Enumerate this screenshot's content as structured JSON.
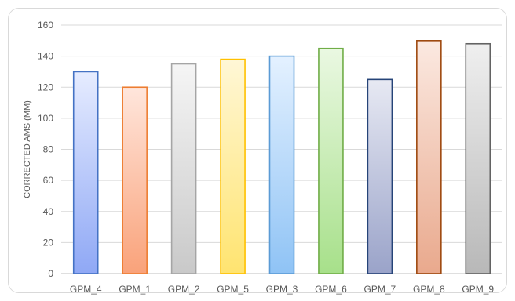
{
  "chart_data": {
    "type": "bar",
    "title": "",
    "xlabel": "",
    "ylabel": "CORRECTED AMS (MM)",
    "ylim": [
      0,
      160
    ],
    "yticks": [
      0,
      20,
      40,
      60,
      80,
      100,
      120,
      140,
      160
    ],
    "grid": true,
    "legend": "none",
    "categories": [
      "GPM_4",
      "GPM_1",
      "GPM_2",
      "GPM_5",
      "GPM_3",
      "GPM_6",
      "GPM_7",
      "GPM_8",
      "GPM_9"
    ],
    "values": [
      130,
      120,
      135,
      138,
      140,
      145,
      125,
      150,
      148
    ],
    "colors": [
      {
        "top": "#e6ecff",
        "bottom": "#8fa8f5",
        "stroke": "#4472c4"
      },
      {
        "top": "#ffe6dc",
        "bottom": "#f9a27a",
        "stroke": "#ed7d31"
      },
      {
        "top": "#f5f5f5",
        "bottom": "#c9c9c9",
        "stroke": "#a5a5a5"
      },
      {
        "top": "#fff7d6",
        "bottom": "#ffe470",
        "stroke": "#ffc000"
      },
      {
        "top": "#e4f1ff",
        "bottom": "#8fc3f5",
        "stroke": "#5b9bd5"
      },
      {
        "top": "#eaf8e2",
        "bottom": "#a7e08a",
        "stroke": "#70ad47"
      },
      {
        "top": "#e7e9f3",
        "bottom": "#9aa3c9",
        "stroke": "#264478"
      },
      {
        "top": "#fbe9e1",
        "bottom": "#e9a98d",
        "stroke": "#9e480e"
      },
      {
        "top": "#efefef",
        "bottom": "#b8b8b8",
        "stroke": "#636363"
      }
    ]
  }
}
